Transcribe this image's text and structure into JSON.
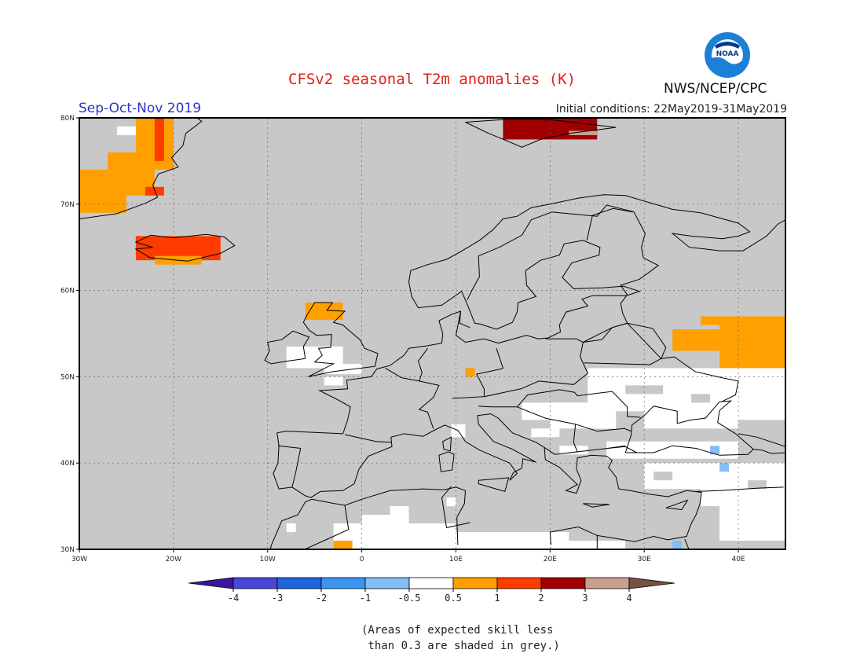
{
  "header": {
    "title": "CFSv2 seasonal T2m anomalies (K)",
    "season": "Sep-Oct-Nov 2019",
    "initial_conditions": "Initial conditions: 22May2019-31May2019",
    "agency": "NWS/NCEP/CPC",
    "logo_text": "NOAA"
  },
  "map": {
    "lon_range": [
      -30,
      45
    ],
    "lat_range": [
      30,
      80
    ],
    "lon_ticks": [
      "30W",
      "20W",
      "10W",
      "0",
      "10E",
      "20E",
      "30E",
      "40E"
    ],
    "lat_ticks": [
      "30N",
      "40N",
      "50N",
      "60N",
      "70N",
      "80N"
    ],
    "background_color": "#c8c8c8",
    "land_outline_color": "#000000",
    "anomaly_regions": [
      {
        "label": "Greenland east coast",
        "color": "#ffa000",
        "category": "0.5 to 1"
      },
      {
        "label": "Greenland east coast",
        "color": "#ff3c00",
        "category": "1 to 2"
      },
      {
        "label": "Iceland",
        "color": "#ff3c00",
        "category": "1 to 2"
      },
      {
        "label": "Iceland south",
        "color": "#ffa000",
        "category": "0.5 to 1"
      },
      {
        "label": "Svalbard",
        "color": "#a00000",
        "category": "2 to 3"
      },
      {
        "label": "Scotland",
        "color": "#ffa000",
        "category": "0.5 to 1"
      },
      {
        "label": "Western Russia",
        "color": "#ffa000",
        "category": "0.5 to 1"
      },
      {
        "label": "North Africa",
        "color": "#ffa000",
        "category": "0.5 to 1"
      },
      {
        "label": "Ukraine / southern Russia",
        "color": "#ffffff",
        "category": "-0.5 to 0.5"
      },
      {
        "label": "Turkey",
        "color": "#ffffff",
        "category": "-0.5 to 0.5"
      }
    ]
  },
  "colorbar": {
    "labels": [
      "-4",
      "-3",
      "-2",
      "-1",
      "-0.5",
      "0.5",
      "1",
      "2",
      "3",
      "4"
    ],
    "colors": [
      "#3c14a0",
      "#4a46d6",
      "#1e64dc",
      "#3c96f0",
      "#82bef5",
      "#ffffff",
      "#ffa000",
      "#ff3c00",
      "#a00000",
      "#c8a090",
      "#7a5040"
    ]
  },
  "footnote": "(Areas of expected skill less\n than 0.3 are shaded in grey.)"
}
